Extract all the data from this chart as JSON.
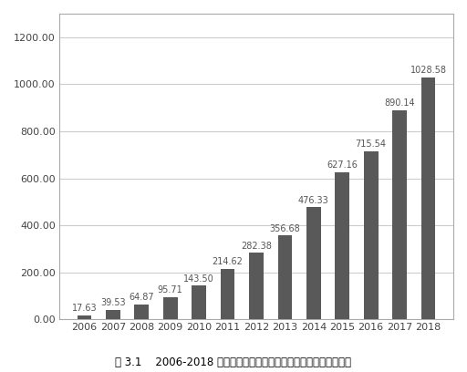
{
  "years": [
    "2006",
    "2007",
    "2008",
    "2009",
    "2010",
    "2011",
    "2012",
    "2013",
    "2014",
    "2015",
    "2016",
    "2017",
    "2018"
  ],
  "values": [
    17.63,
    39.53,
    64.87,
    95.71,
    143.5,
    214.62,
    282.38,
    356.68,
    476.33,
    627.16,
    715.54,
    890.14,
    1028.58
  ],
  "bar_color": "#595959",
  "ylim": [
    0,
    1300
  ],
  "yticks": [
    0,
    200.0,
    400.0,
    600.0,
    800.0,
    1000.0,
    1200.0
  ],
  "label_fontsize": 7.0,
  "tick_fontsize": 8.0,
  "caption": "图 3.1    2006-2018 年中国对东盟直接投资存量表（单位：亿美元）",
  "caption_fontsize": 8.5,
  "bg_color": "#ffffff",
  "bar_width": 0.5,
  "grid_color": "#cccccc",
  "spine_color": "#aaaaaa"
}
